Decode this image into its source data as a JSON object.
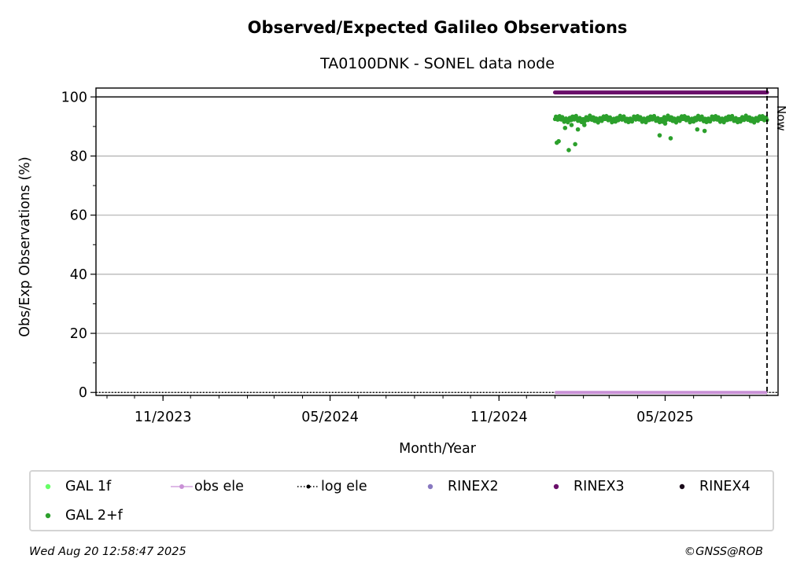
{
  "chart_data": {
    "type": "scatter",
    "title": "Observed/Expected Galileo Observations",
    "subtitle": "TA0100DNK - SONEL data node",
    "xlabel": "Month/Year",
    "ylabel": "Obs/Exp Observations (%)",
    "x_range": [
      "2023-08-20",
      "2025-09-01"
    ],
    "ylim": [
      -1,
      103
    ],
    "x_ticks": [
      {
        "date": "2023-11-01",
        "label": "11/2023"
      },
      {
        "date": "2024-05-01",
        "label": "05/2024"
      },
      {
        "date": "2024-11-01",
        "label": "11/2024"
      },
      {
        "date": "2025-05-01",
        "label": "05/2025"
      }
    ],
    "y_ticks": [
      0,
      20,
      40,
      60,
      80,
      100
    ],
    "grid": "horizontal",
    "now_date": "2025-08-20",
    "now_label": "Now",
    "series": [
      {
        "name": "GAL 1f",
        "color": "#66ff66",
        "values": []
      },
      {
        "name": "GAL 2+f",
        "color": "#2ca02c",
        "start": "2025-01-01",
        "end": "2025-08-20",
        "typical": 92.5,
        "outliers": [
          {
            "x": "2025-01-03",
            "y": 84.5
          },
          {
            "x": "2025-01-05",
            "y": 85
          },
          {
            "x": "2025-01-12",
            "y": 89.5
          },
          {
            "x": "2025-01-16",
            "y": 82
          },
          {
            "x": "2025-01-19",
            "y": 90.5
          },
          {
            "x": "2025-01-23",
            "y": 84
          },
          {
            "x": "2025-01-26",
            "y": 89
          },
          {
            "x": "2025-02-02",
            "y": 90.5
          },
          {
            "x": "2025-04-25",
            "y": 87
          },
          {
            "x": "2025-05-01",
            "y": 91
          },
          {
            "x": "2025-05-07",
            "y": 86
          },
          {
            "x": "2025-06-05",
            "y": 89
          },
          {
            "x": "2025-06-13",
            "y": 88.5
          }
        ]
      },
      {
        "name": "obs ele",
        "color": "#c990d6",
        "start": "2025-01-01",
        "end": "2025-08-20",
        "value": 0
      },
      {
        "name": "log ele",
        "color": "#000000",
        "start": "2023-08-20",
        "end": "2025-09-01",
        "value": 0
      },
      {
        "name": "RINEX2",
        "color": "#8878c0",
        "values": []
      },
      {
        "name": "RINEX3",
        "color": "#6a0f6a",
        "start": "2025-01-01",
        "end": "2025-08-20",
        "value": 101.5
      },
      {
        "name": "RINEX4",
        "color": "#1a0a1a",
        "values": []
      }
    ]
  },
  "legend": [
    {
      "label": "GAL 1f",
      "marker": "dot",
      "color": "#66ff66"
    },
    {
      "label": "obs ele",
      "marker": "line-dot",
      "color": "#c990d6"
    },
    {
      "label": "log ele",
      "marker": "dotted-line",
      "color": "#000000"
    },
    {
      "label": "RINEX2",
      "marker": "dot",
      "color": "#8878c0"
    },
    {
      "label": "RINEX3",
      "marker": "dot",
      "color": "#6a0f6a"
    },
    {
      "label": "RINEX4",
      "marker": "dot",
      "color": "#1a0a1a"
    },
    {
      "label": "GAL 2+f",
      "marker": "dot",
      "color": "#2ca02c"
    }
  ],
  "footer": {
    "timestamp": "Wed Aug 20 12:58:47 2025",
    "credit": "©GNSS@ROB"
  }
}
